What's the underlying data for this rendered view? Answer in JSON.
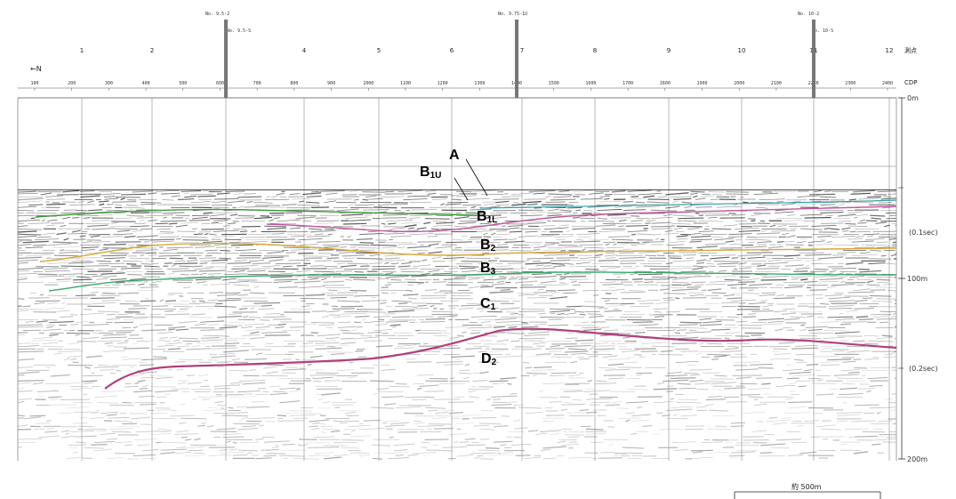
{
  "header": {
    "north_label": "←N",
    "station_row_label": "測点",
    "cdp_row_label": "CDP",
    "station_numbers": [
      "1",
      "2",
      "3",
      "4",
      "5",
      "6",
      "7",
      "8",
      "9",
      "10",
      "11",
      "12"
    ],
    "cdp_labels": [
      "100",
      "200",
      "300",
      "400",
      "500",
      "600",
      "700",
      "800",
      "900",
      "1000",
      "1100",
      "1200",
      "1300",
      "1400",
      "1500",
      "1600",
      "1700",
      "1800",
      "1900",
      "2000",
      "2100",
      "2200",
      "2300",
      "2400"
    ],
    "crossing_lines": [
      {
        "top": "No. 9.5-2",
        "bottom": "No. 9.5-S"
      },
      {
        "top": "No. 9.75-1U",
        "bottom": ""
      },
      {
        "top": "No. 10-2",
        "bottom": "No. 10-S"
      }
    ]
  },
  "depth_axis": {
    "labels": [
      "0m",
      "(0.1sec)",
      "100m",
      "(0.2sec)",
      "200m"
    ]
  },
  "layers": [
    {
      "name": "A",
      "main": "A",
      "sub": ""
    },
    {
      "name": "B1U",
      "main": "B",
      "sub": "1U"
    },
    {
      "name": "B1L",
      "main": "B",
      "sub": "1L"
    },
    {
      "name": "B2",
      "main": "B",
      "sub": "2"
    },
    {
      "name": "B3",
      "main": "B",
      "sub": "3"
    },
    {
      "name": "C1",
      "main": "C",
      "sub": "1"
    },
    {
      "name": "D2",
      "main": "D",
      "sub": "2"
    }
  ],
  "horizon_colors": {
    "B1U": "#35a0a8",
    "B1L": "#3f9a3a",
    "B2": "#c05aa0",
    "B3": "#d8a83a",
    "C1": "#3aa86a",
    "D2": "#b0407e"
  },
  "scale_bar": {
    "label": "約 500m"
  }
}
